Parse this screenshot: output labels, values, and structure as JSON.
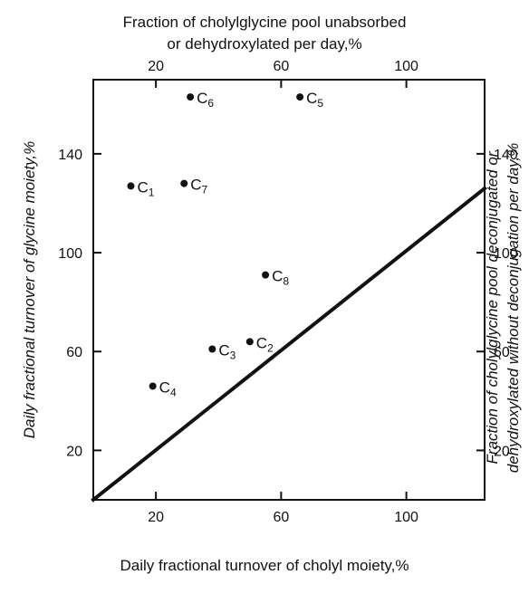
{
  "chart_data": {
    "type": "scatter",
    "title_top": [
      "Fraction of cholylglycine pool unabsorbed",
      "or dehydroxylated per day,%"
    ],
    "xlabel": "Daily fractional turnover of cholyl moiety,%",
    "ylabel": "Daily fractional turnover of glycine moiety,%",
    "ylabel_right": [
      "Fraction of cholylglycine pool deconjugated or",
      "dehydroxylated without deconjugation per day,%"
    ],
    "xlim": [
      0,
      125
    ],
    "ylim": [
      0,
      170
    ],
    "x_ticks": [
      20,
      60,
      100
    ],
    "y_ticks": [
      20,
      60,
      100,
      140
    ],
    "x_tick_labels": [
      "20",
      "60",
      "100"
    ],
    "y_tick_labels": [
      "20",
      "60",
      "100",
      "140"
    ],
    "points": [
      {
        "label": "C",
        "sub": "1",
        "x": 12,
        "y": 127
      },
      {
        "label": "C",
        "sub": "2",
        "x": 50,
        "y": 64
      },
      {
        "label": "C",
        "sub": "3",
        "x": 38,
        "y": 61
      },
      {
        "label": "C",
        "sub": "4",
        "x": 19,
        "y": 46
      },
      {
        "label": "C",
        "sub": "5",
        "x": 66,
        "y": 163
      },
      {
        "label": "C",
        "sub": "6",
        "x": 31,
        "y": 163
      },
      {
        "label": "C",
        "sub": "7",
        "x": 29,
        "y": 128
      },
      {
        "label": "C",
        "sub": "8",
        "x": 55,
        "y": 91
      }
    ],
    "reference_line": {
      "x": [
        0,
        125
      ],
      "y": [
        0,
        126
      ]
    }
  }
}
